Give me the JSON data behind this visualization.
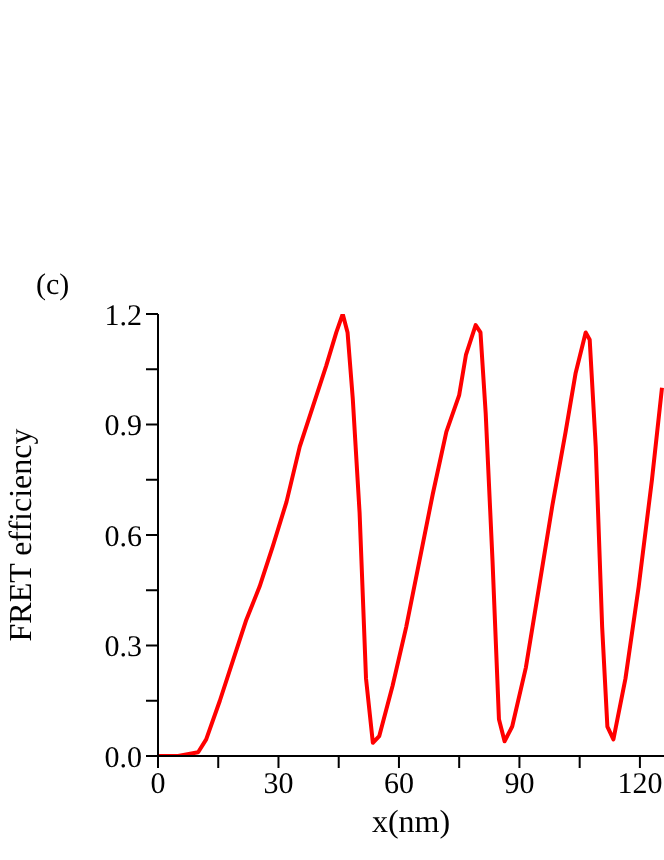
{
  "chart_data": {
    "type": "line",
    "xlabel": "x(nm)",
    "ylabel": "FRET efficiency",
    "annotations": [
      "(c)"
    ],
    "xlim": [
      0,
      126
    ],
    "xticks": [
      0,
      {
        "value": 15,
        "label": null
      },
      30,
      {
        "value": 45,
        "label": null
      },
      60,
      {
        "value": 75,
        "label": null
      },
      90,
      {
        "value": 105,
        "label": null
      },
      120
    ],
    "ylim": [
      0,
      1.2
    ],
    "yticks": [
      "0.0",
      {
        "value": 0.15,
        "label": null
      },
      0.3,
      {
        "value": 0.45,
        "label": null
      },
      0.6,
      {
        "value": 0.75,
        "label": null
      },
      0.9,
      {
        "value": 1.05,
        "label": null
      },
      1.2
    ],
    "marker": "none",
    "line_style": "solid",
    "series": [
      {
        "color": "#ff0000",
        "x": [
          0,
          5,
          10,
          12,
          15.4,
          18.7,
          22,
          25.3,
          28.6,
          32,
          35.3,
          38.6,
          41.9,
          44.4,
          46,
          47.2,
          48.5,
          50.2,
          51.8,
          53.5,
          55.1,
          58.4,
          61.8,
          65.1,
          68.4,
          71.8,
          75,
          76.7,
          79.1,
          80.3,
          81.6,
          83.3,
          84.9,
          86.3,
          88.2,
          91.6,
          94.9,
          98.2,
          101.5,
          104,
          106.5,
          107.5,
          109,
          110.6,
          111.9,
          113.4,
          116.4,
          119.7,
          123,
          125.5
        ],
        "values": [
          0,
          0,
          0.01,
          0.045,
          0.15,
          0.26,
          0.37,
          0.46,
          0.57,
          0.69,
          0.84,
          0.95,
          1.06,
          1.15,
          1.2,
          1.15,
          0.97,
          0.66,
          0.21,
          0.036,
          0.054,
          0.19,
          0.35,
          0.53,
          0.71,
          0.88,
          0.98,
          1.09,
          1.17,
          1.15,
          0.93,
          0.53,
          0.1,
          0.04,
          0.08,
          0.24,
          0.46,
          0.68,
          0.88,
          1.04,
          1.15,
          1.13,
          0.84,
          0.35,
          0.08,
          0.045,
          0.21,
          0.46,
          0.75,
          1.0
        ]
      }
    ]
  }
}
